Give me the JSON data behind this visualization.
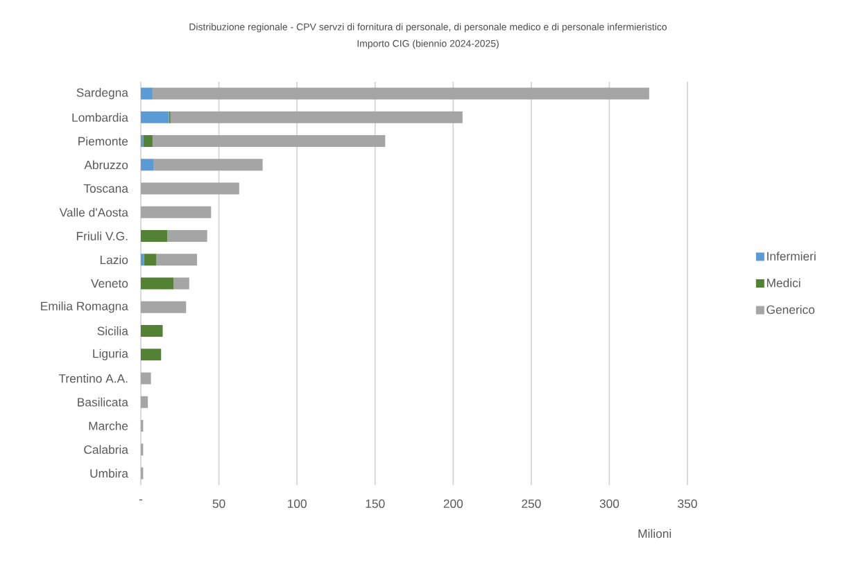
{
  "chart_data": {
    "type": "bar",
    "orientation": "horizontal",
    "stacked": true,
    "title": "Distribuzione regionale - CPV servzi di fornitura di personale, di personale medico e di personale infermieristico",
    "subtitle": "Importo CIG  (biennio 2024-2025)",
    "xlabel": "Milioni",
    "categories": [
      "Sardegna",
      "Lombardia",
      "Piemonte",
      "Abruzzo",
      "Toscana",
      "Valle d'Aosta",
      "Friuli V.G.",
      "Lazio",
      "Veneto",
      "Emilia Romagna",
      "Sicilia",
      "Liguria",
      "Trentino A.A.",
      "Basilicata",
      "Marche",
      "Calabria",
      "Umbira"
    ],
    "series": [
      {
        "name": "Infermieri",
        "color": "#5b9bd5",
        "values": [
          7.5,
          18,
          1.5,
          8,
          0,
          0,
          0,
          2,
          0,
          0,
          0,
          0,
          0,
          0,
          0,
          0,
          0
        ]
      },
      {
        "name": "Medici",
        "color": "#548235",
        "values": [
          0,
          1,
          6,
          0,
          0,
          0,
          17,
          8,
          21,
          0,
          14,
          13,
          0,
          0,
          0,
          0,
          0
        ]
      },
      {
        "name": "Generico",
        "color": "#a5a5a5",
        "values": [
          318,
          187,
          149,
          70,
          63,
          45,
          25.5,
          26,
          10,
          29,
          0,
          0,
          6.5,
          4.5,
          1.5,
          1.5,
          1.5
        ]
      }
    ],
    "xlim": [
      0,
      350
    ],
    "xticks": [
      {
        "value": 0,
        "label": "-"
      },
      50,
      100,
      150,
      200,
      250,
      300,
      350
    ],
    "grid": "x",
    "legend": "right"
  }
}
